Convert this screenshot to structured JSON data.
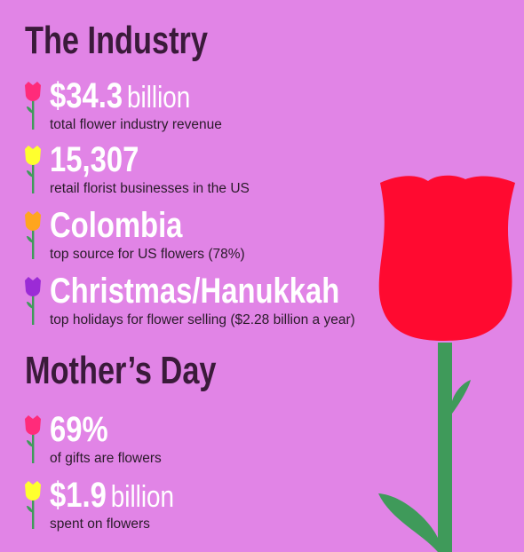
{
  "industry": {
    "title": "The Industry",
    "stats": [
      {
        "value": "$34.3",
        "unit": "billion",
        "desc": "total flower industry revenue",
        "tulip_color": "#ff2b7a"
      },
      {
        "value": "15,307",
        "unit": "",
        "desc": "retail florist businesses in the US",
        "tulip_color": "#ffff2e"
      },
      {
        "value": "Colombia",
        "unit": "",
        "desc": "top source for US flowers (78%)",
        "tulip_color": "#ffa51e"
      },
      {
        "value": "Christmas/Hanukkah",
        "unit": "",
        "desc": "top holidays for flower selling ($2.28 billion a year)",
        "tulip_color": "#9b2bd6"
      }
    ]
  },
  "mothers_day": {
    "title": "Mother’s Day",
    "stats": [
      {
        "value": "69%",
        "unit": "",
        "desc": "of gifts are flowers",
        "tulip_color": "#ff2b7a"
      },
      {
        "value": "$1.9",
        "unit": "billion",
        "desc": "spent on flowers",
        "tulip_color": "#ffff2e"
      }
    ]
  },
  "colors": {
    "background": "#e184e6",
    "heading": "#3a1a3a",
    "stem": "#3f9a5a",
    "big_rose": "#ff0a30"
  }
}
